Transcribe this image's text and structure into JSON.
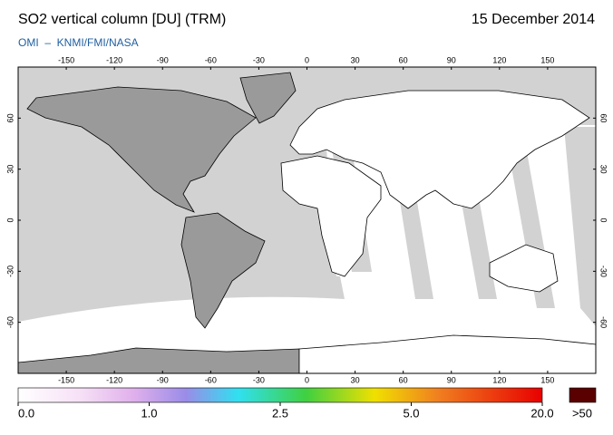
{
  "header": {
    "title": "SO2 vertical column [DU] (TRM)",
    "date": "15 December 2014",
    "source": "OMI  –  KNMI/FMI/NASA"
  },
  "map": {
    "lonlim": [
      -180,
      180
    ],
    "latlim": [
      -90,
      90
    ],
    "lon_ticks": [
      -150,
      -120,
      -90,
      -60,
      -30,
      0,
      30,
      60,
      90,
      120,
      150
    ],
    "lat_ticks": [
      60,
      30,
      0,
      -30,
      -60
    ]
  },
  "colorbar": {
    "ticks": [
      {
        "value": 0,
        "label": "0.0"
      },
      {
        "value": 1,
        "label": "1.0"
      },
      2.5,
      {
        "value": 5,
        "label": "5.0"
      },
      {
        "value": 20,
        "label": "20.0"
      }
    ],
    "overflow_label": ">50"
  }
}
